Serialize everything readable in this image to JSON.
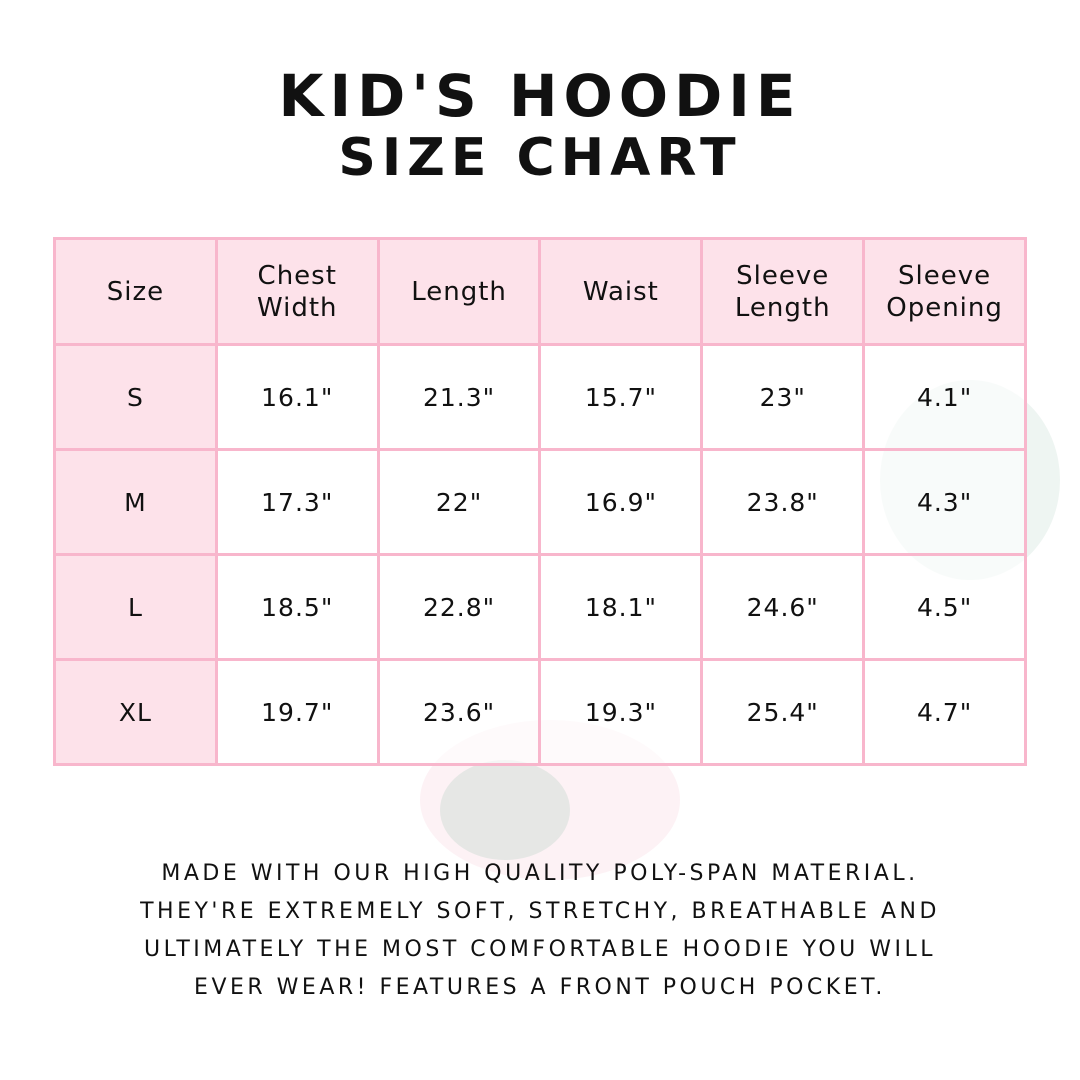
{
  "title": {
    "line1": "Kid's Hoodie",
    "line2": "Size Chart"
  },
  "colors": {
    "border": "#f8b6cc",
    "header_fill": "#fde2ea",
    "text": "#111111"
  },
  "table": {
    "headers": [
      "Size",
      "Chest Width",
      "Length",
      "Waist",
      "Sleeve Length",
      "Sleeve Opening"
    ],
    "rows": [
      [
        "S",
        "16.1\"",
        "21.3\"",
        "15.7\"",
        "23\"",
        "4.1\""
      ],
      [
        "M",
        "17.3\"",
        "22\"",
        "16.9\"",
        "23.8\"",
        "4.3\""
      ],
      [
        "L",
        "18.5\"",
        "22.8\"",
        "18.1\"",
        "24.6\"",
        "4.5\""
      ],
      [
        "XL",
        "19.7\"",
        "23.6\"",
        "19.3\"",
        "25.4\"",
        "4.7\""
      ]
    ]
  },
  "description": [
    "Made with our high quality poly-span material.",
    "They're extremely soft, stretchy, breathable and",
    "ultimately the most comfortable hoodie you will",
    "ever wear! Features a front pouch pocket."
  ]
}
